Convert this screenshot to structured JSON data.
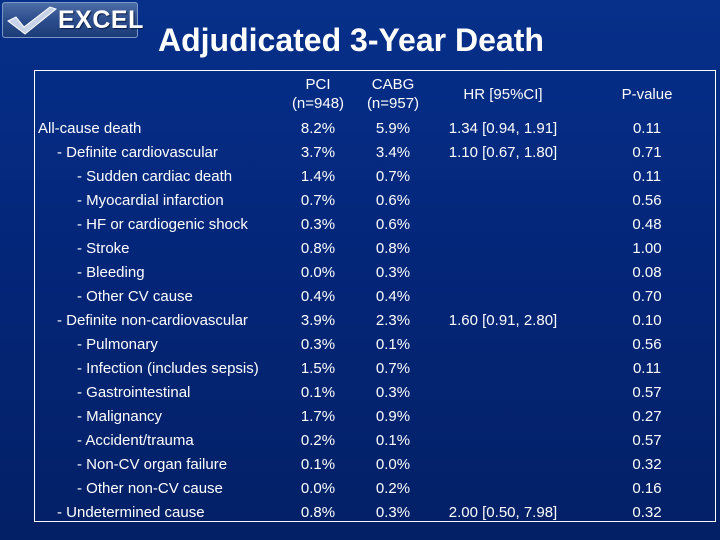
{
  "logo": {
    "text": "EXCEL",
    "icon": "checkmark-icon",
    "colors": {
      "check": "#c8d3e8",
      "panel": "#2c4d8c"
    }
  },
  "title": "Adjudicated 3-Year Death",
  "table": {
    "headers": {
      "label": "",
      "pci": [
        "PCI",
        "(n=948)"
      ],
      "cabg": [
        "CABG",
        "(n=957)"
      ],
      "hr": "HR [95%CI]",
      "p": "P-value"
    },
    "rows": [
      {
        "label": "All-cause death",
        "indent": 0,
        "pci": "8.2%",
        "cabg": "5.9%",
        "hr": "1.34 [0.94, 1.91]",
        "p": "0.11"
      },
      {
        "label": "- Definite cardiovascular",
        "indent": 1,
        "pci": "3.7%",
        "cabg": "3.4%",
        "hr": "1.10 [0.67, 1.80]",
        "p": "0.71"
      },
      {
        "label": "- Sudden cardiac death",
        "indent": 2,
        "pci": "1.4%",
        "cabg": "0.7%",
        "hr": "",
        "p": "0.11"
      },
      {
        "label": "- Myocardial infarction",
        "indent": 2,
        "pci": "0.7%",
        "cabg": "0.6%",
        "hr": "",
        "p": "0.56"
      },
      {
        "label": "- HF or cardiogenic shock",
        "indent": 2,
        "pci": "0.3%",
        "cabg": "0.6%",
        "hr": "",
        "p": "0.48"
      },
      {
        "label": "- Stroke",
        "indent": 2,
        "pci": "0.8%",
        "cabg": "0.8%",
        "hr": "",
        "p": "1.00"
      },
      {
        "label": "- Bleeding",
        "indent": 2,
        "pci": "0.0%",
        "cabg": "0.3%",
        "hr": "",
        "p": "0.08"
      },
      {
        "label": "- Other CV cause",
        "indent": 2,
        "pci": "0.4%",
        "cabg": "0.4%",
        "hr": "",
        "p": "0.70"
      },
      {
        "label": "- Definite non-cardiovascular",
        "indent": 1,
        "pci": "3.9%",
        "cabg": "2.3%",
        "hr": "1.60 [0.91, 2.80]",
        "p": "0.10"
      },
      {
        "label": "- Pulmonary",
        "indent": 2,
        "pci": "0.3%",
        "cabg": "0.1%",
        "hr": "",
        "p": "0.56"
      },
      {
        "label": "- Infection (includes sepsis)",
        "indent": 2,
        "pci": "1.5%",
        "cabg": "0.7%",
        "hr": "",
        "p": "0.11"
      },
      {
        "label": "- Gastrointestinal",
        "indent": 2,
        "pci": "0.1%",
        "cabg": "0.3%",
        "hr": "",
        "p": "0.57"
      },
      {
        "label": "- Malignancy",
        "indent": 2,
        "pci": "1.7%",
        "cabg": "0.9%",
        "hr": "",
        "p": "0.27"
      },
      {
        "label": "- Accident/trauma",
        "indent": 2,
        "pci": "0.2%",
        "cabg": "0.1%",
        "hr": "",
        "p": "0.57"
      },
      {
        "label": "- Non-CV organ failure",
        "indent": 2,
        "pci": "0.1%",
        "cabg": "0.0%",
        "hr": "",
        "p": "0.32"
      },
      {
        "label": "- Other non-CV cause",
        "indent": 2,
        "pci": "0.0%",
        "cabg": "0.2%",
        "hr": "",
        "p": "0.16"
      },
      {
        "label": "- Undetermined cause",
        "indent": 1,
        "pci": "0.8%",
        "cabg": "0.3%",
        "hr": "2.00 [0.50, 7.98]",
        "p": "0.32"
      }
    ]
  }
}
